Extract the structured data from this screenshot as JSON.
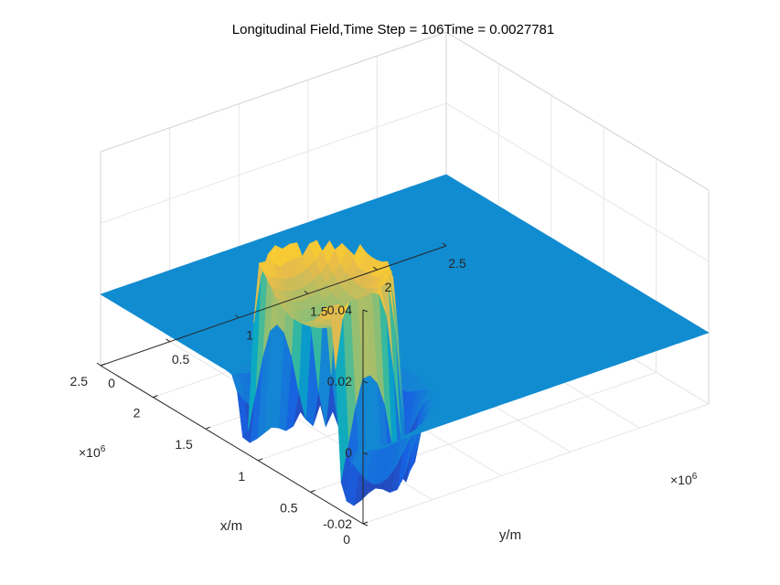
{
  "chart_data": {
    "type": "surface",
    "title": "Longitudinal Field,Time Step = 106Time = 0.0027781",
    "xlabel": "x/m",
    "ylabel": "y/m",
    "zlabel": "",
    "xlim": [
      0,
      2.5
    ],
    "ylim": [
      0,
      2.5
    ],
    "zlim": [
      -0.02,
      0.04
    ],
    "x_ticks": [
      "0",
      "0.5",
      "1",
      "1.5",
      "2",
      "2.5"
    ],
    "y_ticks": [
      "0",
      "0.5",
      "1",
      "1.5",
      "2",
      "2.5"
    ],
    "z_ticks": [
      "-0.02",
      "0",
      "0.02",
      "0.04"
    ],
    "x_exponent": "6",
    "y_exponent": "6",
    "grid": true,
    "colormap": "parula",
    "baseline_value": 0,
    "ring": {
      "center_x": 0.65,
      "center_y": 0.2,
      "radius": 0.4,
      "peak": 0.037,
      "inner_min": 0.022,
      "trough_min": -0.02
    }
  }
}
